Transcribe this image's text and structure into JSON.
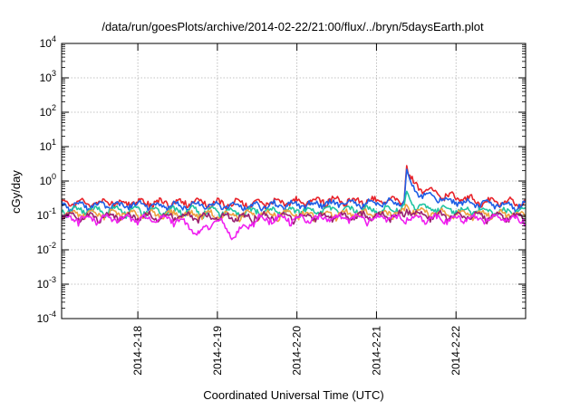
{
  "chart_data": {
    "type": "line",
    "title": "/data/run/goesPlots/archive/2014-02-22/21:00/flux/../bryn/5daysEarth.plot",
    "xlabel": "Coordinated Universal Time (UTC)",
    "ylabel": "cGy/day",
    "y_scale": "log",
    "ylim": [
      "1e-4",
      "1e4"
    ],
    "y_ticks": [
      {
        "value": "1e-4",
        "base": "10",
        "exp": "-4"
      },
      {
        "value": "1e-3",
        "base": "10",
        "exp": "-3"
      },
      {
        "value": "1e-2",
        "base": "10",
        "exp": "-2"
      },
      {
        "value": "1e-1",
        "base": "10",
        "exp": "-1"
      },
      {
        "value": "1e0",
        "base": "10",
        "exp": "0"
      },
      {
        "value": "1e1",
        "base": "10",
        "exp": "1"
      },
      {
        "value": "1e2",
        "base": "10",
        "exp": "2"
      },
      {
        "value": "1e3",
        "base": "10",
        "exp": "3"
      },
      {
        "value": "1e4",
        "base": "10",
        "exp": "4"
      }
    ],
    "xlim": [
      "2014-02-17T01:00",
      "2014-02-22T21:00"
    ],
    "x_ticks": [
      "2014-2-18",
      "2014-2-19",
      "2014-2-20",
      "2014-2-21",
      "2014-2-22"
    ],
    "grid": true,
    "x_unit": "days since 2014-02-17T00:00 UTC",
    "series": [
      {
        "color": "#e8232a",
        "x": [
          1.04,
          1.5,
          2.0,
          2.5,
          3.0,
          3.5,
          3.9,
          4.2,
          4.35,
          4.38,
          4.42,
          4.5,
          4.6,
          4.8,
          5.0,
          5.3,
          5.5,
          5.87
        ],
        "values": [
          0.24,
          0.24,
          0.23,
          0.23,
          0.25,
          0.28,
          0.27,
          0.28,
          0.32,
          2.8,
          1.1,
          0.75,
          0.55,
          0.42,
          0.33,
          0.27,
          0.25,
          0.24
        ]
      },
      {
        "color": "#1e5ee6",
        "x": [
          1.04,
          1.5,
          2.0,
          2.5,
          3.0,
          3.5,
          3.9,
          4.2,
          4.35,
          4.38,
          4.42,
          4.5,
          4.6,
          4.8,
          5.0,
          5.3,
          5.5,
          5.87
        ],
        "values": [
          0.2,
          0.2,
          0.19,
          0.19,
          0.21,
          0.23,
          0.22,
          0.23,
          0.26,
          2.2,
          0.85,
          0.55,
          0.4,
          0.3,
          0.25,
          0.22,
          0.2,
          0.2
        ]
      },
      {
        "color": "#1fc4a2",
        "x": [
          1.04,
          1.5,
          2.0,
          2.5,
          3.0,
          3.5,
          3.9,
          4.2,
          4.35,
          4.38,
          4.42,
          4.5,
          4.6,
          4.8,
          5.0,
          5.3,
          5.5,
          5.87
        ],
        "values": [
          0.14,
          0.14,
          0.13,
          0.13,
          0.14,
          0.15,
          0.15,
          0.15,
          0.17,
          0.5,
          0.28,
          0.2,
          0.17,
          0.15,
          0.14,
          0.14,
          0.13,
          0.13
        ]
      },
      {
        "color": "#f0a040",
        "x": [
          1.04,
          2.0,
          3.0,
          4.0,
          4.35,
          4.38,
          4.45,
          4.6,
          5.0,
          5.87
        ],
        "values": [
          0.11,
          0.105,
          0.11,
          0.11,
          0.12,
          0.2,
          0.14,
          0.12,
          0.11,
          0.11
        ]
      },
      {
        "color": "#9a2070",
        "x": [
          1.04,
          2.0,
          3.0,
          4.0,
          4.35,
          4.38,
          4.45,
          4.6,
          5.0,
          5.87
        ],
        "values": [
          0.095,
          0.09,
          0.095,
          0.095,
          0.1,
          0.15,
          0.12,
          0.1,
          0.095,
          0.095
        ]
      },
      {
        "color": "#f020f0",
        "x": [
          1.04,
          1.5,
          1.77,
          2.0,
          2.18,
          2.5,
          3.0,
          4.0,
          4.5,
          5.0,
          5.87
        ],
        "values": [
          0.08,
          0.08,
          0.03,
          0.08,
          0.025,
          0.08,
          0.08,
          0.085,
          0.085,
          0.08,
          0.08
        ]
      }
    ]
  }
}
